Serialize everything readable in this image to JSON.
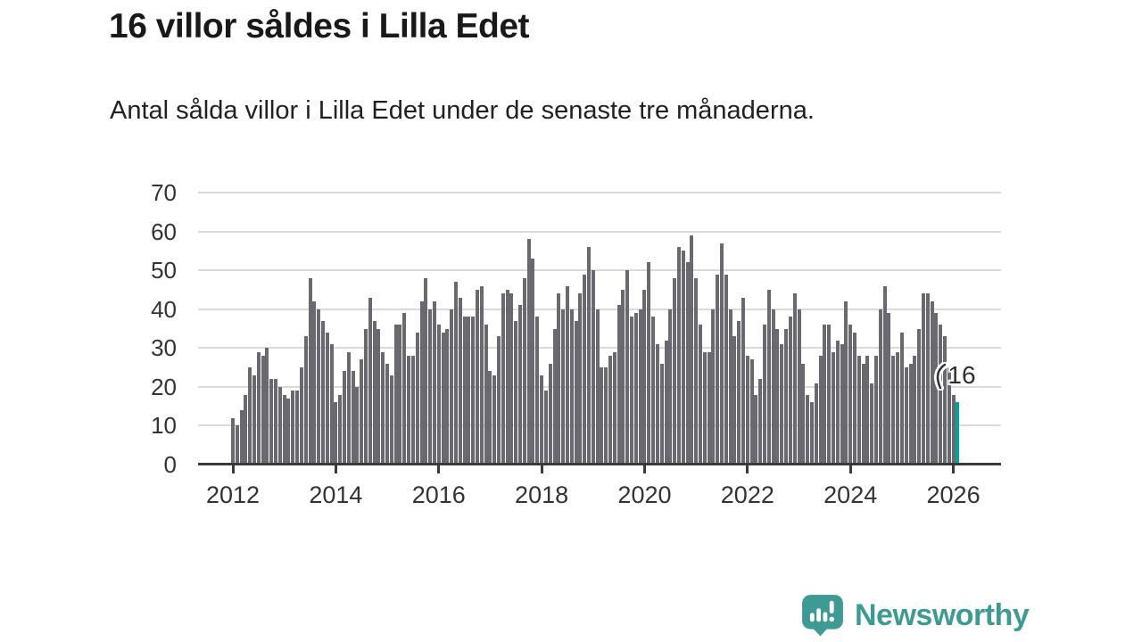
{
  "header": {
    "title": "16 villor såldes i Lilla Edet",
    "subtitle": "Antal sålda villor i Lilla Edet under de senaste tre månaderna."
  },
  "chart_data": {
    "type": "bar",
    "title": "16 villor såldes i Lilla Edet",
    "xlabel": "",
    "ylabel": "",
    "x_start_year": 2012,
    "x_tick_years": [
      2012,
      2014,
      2016,
      2018,
      2020,
      2022,
      2024,
      2026
    ],
    "y_ticks": [
      0,
      10,
      20,
      30,
      40,
      50,
      60,
      70
    ],
    "ylim": [
      0,
      70
    ],
    "grid": true,
    "values": [
      12,
      10,
      14,
      18,
      25,
      23,
      29,
      28,
      30,
      22,
      22,
      20,
      18,
      17,
      19,
      19,
      25,
      33,
      48,
      42,
      40,
      37,
      34,
      31,
      16,
      18,
      24,
      29,
      24,
      20,
      27,
      35,
      43,
      37,
      35,
      29,
      26,
      23,
      36,
      36,
      39,
      28,
      28,
      34,
      42,
      48,
      40,
      42,
      36,
      34,
      35,
      40,
      47,
      43,
      38,
      38,
      38,
      45,
      46,
      36,
      24,
      23,
      33,
      44,
      45,
      44,
      37,
      41,
      48,
      58,
      53,
      38,
      23,
      19,
      26,
      35,
      44,
      40,
      46,
      40,
      37,
      44,
      49,
      56,
      50,
      40,
      25,
      25,
      28,
      29,
      41,
      45,
      50,
      38,
      39,
      40,
      45,
      52,
      38,
      31,
      26,
      32,
      40,
      48,
      56,
      55,
      52,
      59,
      48,
      36,
      29,
      29,
      40,
      49,
      57,
      49,
      40,
      33,
      37,
      43,
      28,
      27,
      18,
      22,
      36,
      45,
      40,
      35,
      31,
      35,
      38,
      44,
      40,
      26,
      18,
      16,
      21,
      28,
      36,
      36,
      29,
      32,
      31,
      42,
      36,
      34,
      28,
      26,
      28,
      21,
      28,
      40,
      46,
      39,
      28,
      29,
      34,
      25,
      26,
      28,
      35,
      44,
      44,
      42,
      39,
      36,
      33,
      25,
      18,
      16
    ],
    "highlight_last": true,
    "annotation": {
      "text": "16",
      "value": 16
    },
    "bar_color": "#69696f",
    "highlight_color": "#00a69c",
    "gridline_color": "#dadada",
    "axis_color": "#3a3a3a"
  },
  "footer": {
    "brand": "Newsworthy",
    "brand_color": "#3d9b94"
  }
}
